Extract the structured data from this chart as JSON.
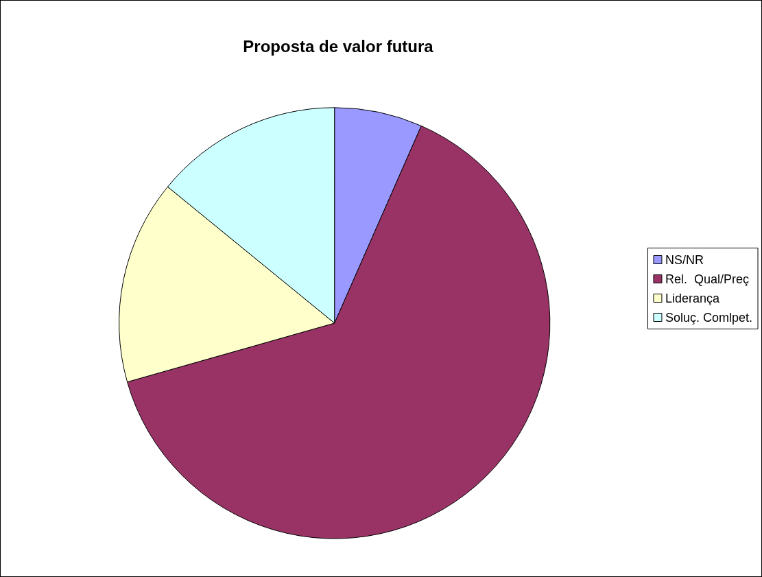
{
  "chart_data": {
    "type": "pie",
    "title": "Proposta de valor futura",
    "categories": [
      "NS/NR",
      "Rel.  Qual/Preç",
      "Liderança",
      "Soluç. Comlpet."
    ],
    "values": [
      6.6,
      64.0,
      15.3,
      14.1
    ],
    "colors": [
      "#9999ff",
      "#993366",
      "#ffffcc",
      "#ccffff"
    ],
    "legend": "right"
  }
}
